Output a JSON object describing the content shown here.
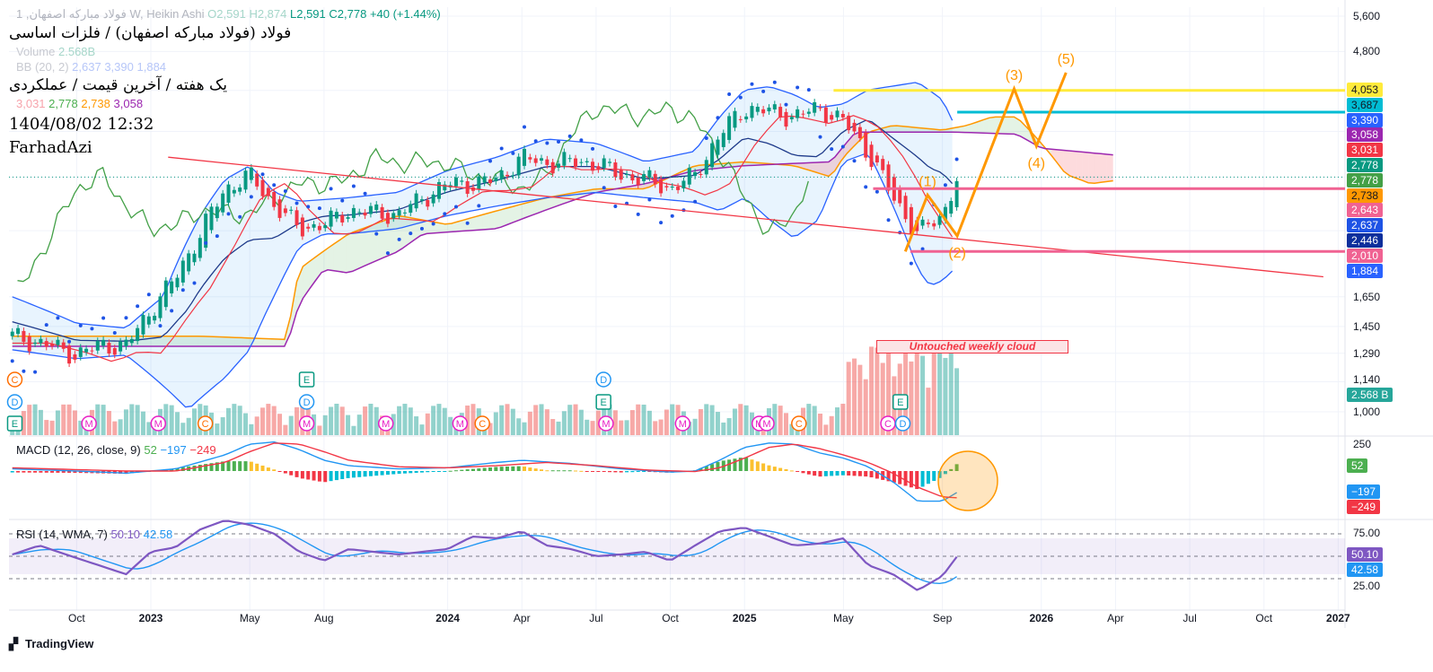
{
  "header": {
    "symbol_line": "1 ,فولاد مبارکه اصفهان W, Heikin Ashi",
    "ohlc": {
      "o": "O2,591",
      "h": "H2,874",
      "l": "L2,591",
      "c": "C2,778",
      "change": "+40 (+1.44%)"
    },
    "volume_label": "Volume",
    "volume_value": "2.568B",
    "bb_label": "BB (20, 2)",
    "bb_values": [
      "2,637",
      "3,390",
      "1,884"
    ],
    "ichimoku_values": [
      "3,031",
      "2,778",
      "2,738",
      "3,058"
    ],
    "title_fa": "فولاد (فولاد مبارکه اصفهان) / فلزات اساسی",
    "subtitle_fa": "یک هفته / آخرین قیمت / عملکردی",
    "datetime": "1404/08/02 12:32",
    "author": "FarhadAzi"
  },
  "macd": {
    "label": "MACD (12, 26, close, 9)",
    "hist": "52",
    "macd": "−197",
    "signal": "−249",
    "axis": [
      "250"
    ]
  },
  "rsi": {
    "label": "RSI (14, WMA, 7)",
    "rsi": "50.10",
    "ma": "42.58",
    "axis": [
      "75.00",
      "25.00"
    ]
  },
  "annotation": "Untouched weekly cloud",
  "waves": [
    "(1)",
    "(2)",
    "(3)",
    "(4)",
    "(5)"
  ],
  "price_axis": [
    "5,600",
    "4,800",
    "1,650",
    "1,450",
    "1,290",
    "1,140",
    "1,000"
  ],
  "price_labels": [
    {
      "text": "4,053",
      "bg": "#ffeb3b",
      "fg": "#131722"
    },
    {
      "text": "3,687",
      "bg": "#00bcd4",
      "fg": "#131722"
    },
    {
      "text": "3,390",
      "bg": "#2962ff",
      "fg": "#fff"
    },
    {
      "text": "3,058",
      "bg": "#9c27b0",
      "fg": "#fff"
    },
    {
      "text": "3,031",
      "bg": "#f23645",
      "fg": "#fff"
    },
    {
      "text": "2,778",
      "bg": "#089981",
      "fg": "#fff"
    },
    {
      "text": "2,778",
      "bg": "#43a047",
      "fg": "#fff"
    },
    {
      "text": "2,738",
      "bg": "#ff9800",
      "fg": "#131722"
    },
    {
      "text": "2,643",
      "bg": "#f06292",
      "fg": "#fff"
    },
    {
      "text": "2,637",
      "bg": "#1e53e5",
      "fg": "#fff"
    },
    {
      "text": "2,446",
      "bg": "#0d2f9c",
      "fg": "#fff"
    },
    {
      "text": "2,010",
      "bg": "#f06292",
      "fg": "#fff"
    },
    {
      "text": "1,884",
      "bg": "#2962ff",
      "fg": "#fff"
    }
  ],
  "volume_label_value": "2.568 B",
  "time_axis": [
    "Oct",
    "2023",
    "May",
    "Aug",
    "2024",
    "Apr",
    "Jul",
    "Oct",
    "2025",
    "May",
    "Sep",
    "2026",
    "Apr",
    "Jul",
    "Oct",
    "2027"
  ],
  "brand": "TradingView",
  "chart_data": {
    "type": "candlestick",
    "scale": "log",
    "time_ticks_month_index": [
      -3,
      0,
      4,
      7,
      12,
      15,
      18,
      21,
      24,
      28,
      32,
      36,
      39,
      42,
      45,
      48
    ],
    "monthly_close": [
      [
        -5.6,
        1390
      ],
      [
        -4,
        1330
      ],
      [
        -3,
        1280
      ],
      [
        -2,
        1340
      ],
      [
        -1,
        1330
      ],
      [
        0,
        1560
      ],
      [
        1,
        1790
      ],
      [
        2,
        2170
      ],
      [
        3,
        2640
      ],
      [
        4,
        2800
      ],
      [
        5,
        2450
      ],
      [
        6,
        2220
      ],
      [
        7,
        2260
      ],
      [
        8,
        2400
      ],
      [
        9,
        2380
      ],
      [
        10,
        2360
      ],
      [
        11,
        2540
      ],
      [
        12,
        2700
      ],
      [
        13,
        2700
      ],
      [
        14,
        2750
      ],
      [
        15,
        3030
      ],
      [
        16,
        2950
      ],
      [
        17,
        2970
      ],
      [
        18,
        2950
      ],
      [
        19,
        2800
      ],
      [
        20,
        2750
      ],
      [
        21,
        2640
      ],
      [
        22,
        2800
      ],
      [
        23,
        3340
      ],
      [
        24,
        3760
      ],
      [
        25,
        3700
      ],
      [
        26,
        3610
      ],
      [
        27,
        3760
      ],
      [
        28,
        3540
      ],
      [
        29,
        3090
      ],
      [
        30,
        2540
      ],
      [
        31,
        2170
      ],
      [
        32,
        2350
      ],
      [
        32.6,
        2778
      ]
    ],
    "bb_upper": [
      [
        -5.6,
        1650
      ],
      [
        -3,
        1470
      ],
      [
        -1,
        1440
      ],
      [
        0.5,
        1650
      ],
      [
        2,
        2350
      ],
      [
        3,
        2750
      ],
      [
        4,
        2920
      ],
      [
        5,
        2600
      ],
      [
        6,
        2500
      ],
      [
        8,
        2540
      ],
      [
        10,
        2600
      ],
      [
        12,
        2860
      ],
      [
        14,
        3030
      ],
      [
        16,
        3280
      ],
      [
        18,
        3220
      ],
      [
        20,
        2970
      ],
      [
        22,
        3110
      ],
      [
        23,
        3610
      ],
      [
        24,
        4060
      ],
      [
        25,
        4120
      ],
      [
        26,
        3980
      ],
      [
        27,
        3760
      ],
      [
        28,
        3820
      ],
      [
        29,
        4060
      ],
      [
        30,
        4130
      ],
      [
        31,
        4200
      ],
      [
        32,
        3890
      ],
      [
        32.6,
        3390
      ]
    ],
    "bb_lower": [
      [
        -5.6,
        1310
      ],
      [
        -3,
        1260
      ],
      [
        -1,
        1280
      ],
      [
        0.5,
        1120
      ],
      [
        1.5,
        1010
      ],
      [
        3,
        1160
      ],
      [
        4,
        1310
      ],
      [
        5,
        1660
      ],
      [
        6,
        2050
      ],
      [
        7,
        2170
      ],
      [
        8,
        2170
      ],
      [
        10,
        2220
      ],
      [
        12,
        2350
      ],
      [
        14,
        2450
      ],
      [
        16,
        2540
      ],
      [
        18,
        2600
      ],
      [
        20,
        2540
      ],
      [
        22,
        2490
      ],
      [
        23,
        2400
      ],
      [
        24,
        2540
      ],
      [
        25,
        2310
      ],
      [
        26,
        2130
      ],
      [
        27,
        2310
      ],
      [
        28,
        2970
      ],
      [
        29,
        3090
      ],
      [
        30,
        2450
      ],
      [
        31,
        1860
      ],
      [
        31.5,
        1730
      ],
      [
        32,
        1770
      ],
      [
        32.6,
        1884
      ]
    ],
    "span_a": [
      [
        -5.6,
        1390
      ],
      [
        2,
        1390
      ],
      [
        5.5,
        1370
      ],
      [
        6,
        1860
      ],
      [
        8,
        2170
      ],
      [
        10,
        2350
      ],
      [
        12,
        2260
      ],
      [
        14,
        2400
      ],
      [
        16,
        2540
      ],
      [
        18,
        2640
      ],
      [
        20,
        2640
      ],
      [
        22,
        2920
      ],
      [
        24,
        2970
      ],
      [
        26,
        2920
      ],
      [
        27.5,
        2780
      ],
      [
        28,
        3030
      ],
      [
        29,
        3380
      ],
      [
        30,
        3480
      ],
      [
        32,
        3410
      ],
      [
        33,
        3480
      ],
      [
        34,
        3610
      ],
      [
        35,
        3610
      ],
      [
        36,
        3220
      ],
      [
        37,
        2810
      ],
      [
        38,
        2700
      ],
      [
        39,
        2738
      ]
    ],
    "span_b": [
      [
        -5.6,
        1330
      ],
      [
        5.5,
        1330
      ],
      [
        6,
        1600
      ],
      [
        7,
        1860
      ],
      [
        8,
        1830
      ],
      [
        10,
        2010
      ],
      [
        11,
        2170
      ],
      [
        14,
        2220
      ],
      [
        18,
        2600
      ],
      [
        20,
        2700
      ],
      [
        22,
        2860
      ],
      [
        24,
        2920
      ],
      [
        27.5,
        2970
      ],
      [
        28.5,
        3380
      ],
      [
        32.5,
        3380
      ],
      [
        35,
        3350
      ],
      [
        36,
        3150
      ],
      [
        39,
        3058
      ]
    ],
    "trendline": [
      [
        0.7,
        3030
      ],
      [
        47.4,
        1800
      ]
    ],
    "horizontal_levels": [
      {
        "price": 4053,
        "from": 27.6,
        "color": "#ffeb3b"
      },
      {
        "price": 3687,
        "from": 32.6,
        "color": "#00bcd4"
      },
      {
        "price": 2643,
        "from": 29.2,
        "color": "#f06292"
      },
      {
        "price": 2010,
        "from": 30.7,
        "color": "#f06292"
      }
    ],
    "elliott_wave": [
      [
        30.5,
        2010
      ],
      [
        31.4,
        2570
      ],
      [
        32.6,
        2150
      ],
      [
        34.9,
        4080
      ],
      [
        35.8,
        3180
      ],
      [
        37,
        4380
      ]
    ],
    "macd_line": [
      [
        -5.6,
        20
      ],
      [
        -3,
        0
      ],
      [
        -1,
        -20
      ],
      [
        1,
        20
      ],
      [
        3,
        150
      ],
      [
        4,
        250
      ],
      [
        5,
        270
      ],
      [
        6,
        200
      ],
      [
        7,
        100
      ],
      [
        8,
        50
      ],
      [
        10,
        20
      ],
      [
        12,
        30
      ],
      [
        14,
        80
      ],
      [
        15,
        100
      ],
      [
        17,
        70
      ],
      [
        19,
        20
      ],
      [
        21,
        -10
      ],
      [
        22,
        0
      ],
      [
        23,
        100
      ],
      [
        24,
        220
      ],
      [
        25,
        260
      ],
      [
        26,
        250
      ],
      [
        27,
        170
      ],
      [
        28,
        120
      ],
      [
        29,
        40
      ],
      [
        30,
        -100
      ],
      [
        31,
        -280
      ],
      [
        32,
        -280
      ],
      [
        32.6,
        -197
      ]
    ],
    "signal_line": [
      [
        -5.6,
        30
      ],
      [
        -1,
        0
      ],
      [
        1,
        0
      ],
      [
        3,
        80
      ],
      [
        4,
        180
      ],
      [
        5,
        260
      ],
      [
        6,
        250
      ],
      [
        7,
        180
      ],
      [
        8,
        100
      ],
      [
        10,
        40
      ],
      [
        12,
        30
      ],
      [
        14,
        50
      ],
      [
        16,
        80
      ],
      [
        18,
        50
      ],
      [
        20,
        10
      ],
      [
        22,
        -5
      ],
      [
        23,
        30
      ],
      [
        24,
        120
      ],
      [
        25,
        220
      ],
      [
        26,
        250
      ],
      [
        27,
        210
      ],
      [
        28,
        150
      ],
      [
        29,
        80
      ],
      [
        30,
        -20
      ],
      [
        31,
        -150
      ],
      [
        32,
        -240
      ],
      [
        32.6,
        -249
      ]
    ],
    "rsi_line": [
      [
        -5.6,
        52
      ],
      [
        -4.5,
        62
      ],
      [
        -3,
        48
      ],
      [
        -1,
        30
      ],
      [
        0,
        55
      ],
      [
        1,
        60
      ],
      [
        2,
        80
      ],
      [
        3,
        90
      ],
      [
        4,
        85
      ],
      [
        5,
        75
      ],
      [
        6,
        55
      ],
      [
        7,
        45
      ],
      [
        8,
        58
      ],
      [
        10,
        52
      ],
      [
        12,
        58
      ],
      [
        13,
        72
      ],
      [
        14,
        70
      ],
      [
        15,
        78
      ],
      [
        16,
        62
      ],
      [
        17,
        58
      ],
      [
        18,
        50
      ],
      [
        19,
        52
      ],
      [
        20,
        55
      ],
      [
        21,
        45
      ],
      [
        22,
        62
      ],
      [
        23,
        78
      ],
      [
        24,
        82
      ],
      [
        25,
        72
      ],
      [
        26,
        62
      ],
      [
        27,
        64
      ],
      [
        28,
        70
      ],
      [
        29,
        40
      ],
      [
        30,
        30
      ],
      [
        31,
        12
      ],
      [
        32,
        28
      ],
      [
        32.6,
        50.1
      ]
    ],
    "events": [
      {
        "m": -5.5,
        "row": 0,
        "t": "C",
        "c": "#ff6d00",
        "shape": "circle"
      },
      {
        "m": -5.5,
        "row": 1,
        "t": "D",
        "c": "#2196f3",
        "shape": "circle"
      },
      {
        "m": -5.5,
        "row": 2,
        "t": "E",
        "c": "#089981",
        "shape": "square"
      },
      {
        "m": -2.5,
        "row": 2,
        "t": "M",
        "c": "#e91ec6",
        "shape": "circle"
      },
      {
        "m": 0.3,
        "row": 2,
        "t": "M",
        "c": "#e91ec6",
        "shape": "circle"
      },
      {
        "m": 2.2,
        "row": 2,
        "t": "C",
        "c": "#ff6d00",
        "shape": "circle"
      },
      {
        "m": 6.3,
        "row": 0,
        "t": "E",
        "c": "#089981",
        "shape": "square"
      },
      {
        "m": 6.3,
        "row": 1,
        "t": "D",
        "c": "#2196f3",
        "shape": "circle"
      },
      {
        "m": 6.3,
        "row": 2,
        "t": "M",
        "c": "#e91ec6",
        "shape": "circle"
      },
      {
        "m": 9.5,
        "row": 2,
        "t": "M",
        "c": "#e91ec6",
        "shape": "circle"
      },
      {
        "m": 12.5,
        "row": 2,
        "t": "M",
        "c": "#e91ec6",
        "shape": "circle"
      },
      {
        "m": 13.4,
        "row": 2,
        "t": "C",
        "c": "#ff6d00",
        "shape": "circle"
      },
      {
        "m": 18.3,
        "row": 0,
        "t": "D",
        "c": "#2196f3",
        "shape": "circle"
      },
      {
        "m": 18.3,
        "row": 1,
        "t": "E",
        "c": "#089981",
        "shape": "square"
      },
      {
        "m": 18.4,
        "row": 2,
        "t": "M",
        "c": "#e91ec6",
        "shape": "circle"
      },
      {
        "m": 21.5,
        "row": 2,
        "t": "M",
        "c": "#e91ec6",
        "shape": "circle"
      },
      {
        "m": 24.6,
        "row": 2,
        "t": "M",
        "c": "#e91ec6",
        "shape": "circle"
      },
      {
        "m": 24.9,
        "row": 2,
        "t": "M",
        "c": "#e91ec6",
        "shape": "circle"
      },
      {
        "m": 26.2,
        "row": 2,
        "t": "C",
        "c": "#ff6d00",
        "shape": "circle"
      },
      {
        "m": 29.8,
        "row": 2,
        "t": "C",
        "c": "#e91ec6",
        "shape": "circle"
      },
      {
        "m": 30.3,
        "row": 1,
        "t": "E",
        "c": "#089981",
        "shape": "square"
      },
      {
        "m": 30.4,
        "row": 2,
        "t": "D",
        "c": "#2196f3",
        "shape": "circle"
      }
    ]
  }
}
